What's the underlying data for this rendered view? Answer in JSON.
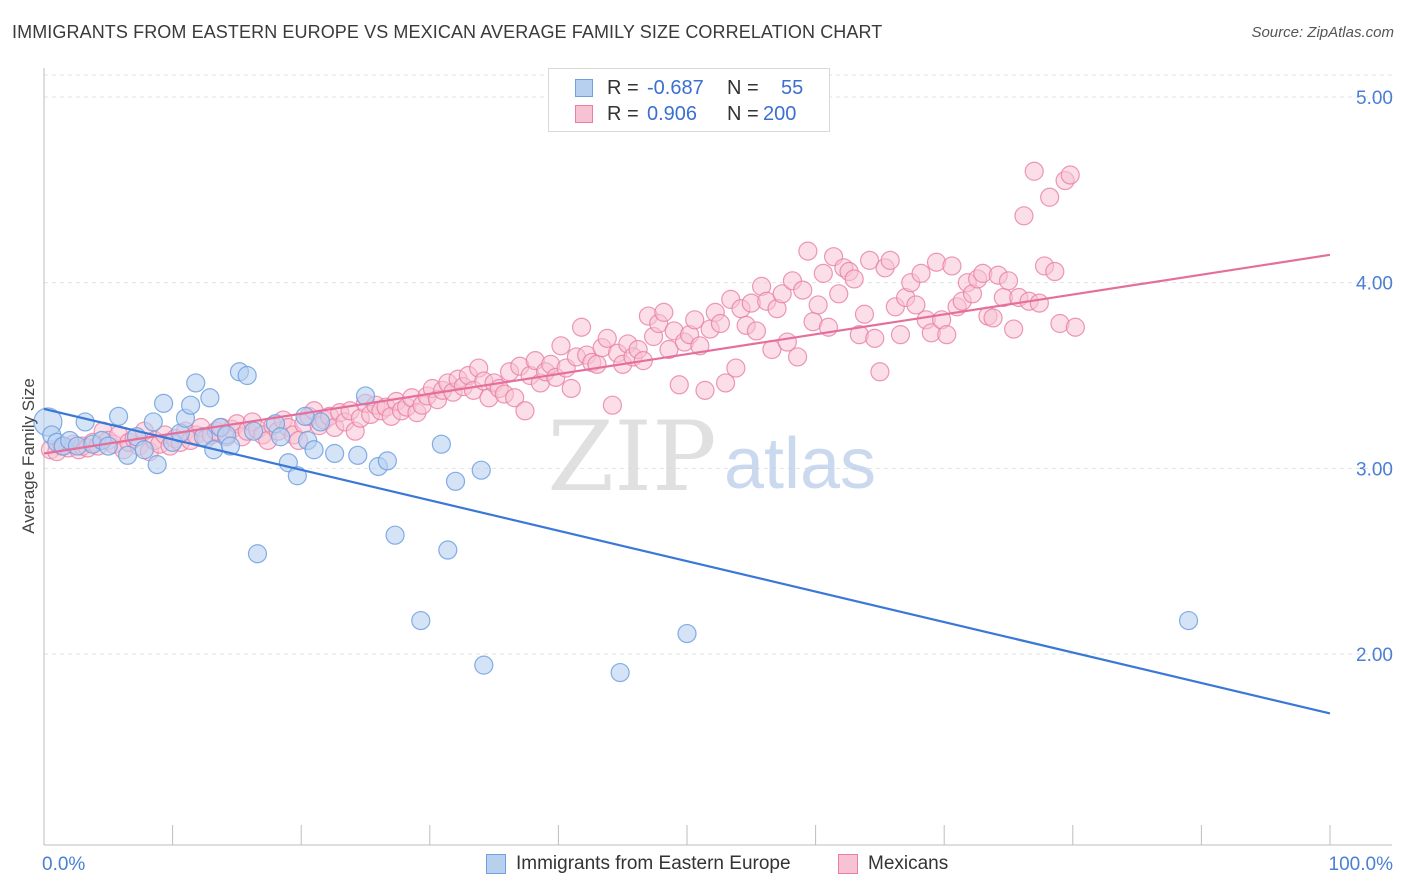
{
  "title": "IMMIGRANTS FROM EASTERN EUROPE VS MEXICAN AVERAGE FAMILY SIZE CORRELATION CHART",
  "source": "Source: ZipAtlas.com",
  "watermark": {
    "zip": "ZIP",
    "atlas": "atlas"
  },
  "legend_top": [
    {
      "r_label": "R =",
      "r_value": "-0.687",
      "n_label": "N =",
      "n_value": "55",
      "color": "#6fa0e0",
      "fill": "#b8d0f0"
    },
    {
      "r_label": "R =",
      "r_value": "0.906",
      "n_label": "N =",
      "n_value": "200",
      "color": "#e87ea4",
      "fill": "#f7c2d4"
    }
  ],
  "legend_bottom": [
    {
      "label": "Immigrants from Eastern Europe",
      "color": "#6fa0e0",
      "fill": "#b8d0f0"
    },
    {
      "label": "Mexicans",
      "color": "#e87ea4",
      "fill": "#f7c2d4"
    }
  ],
  "chart_data": {
    "type": "scatter",
    "title": "IMMIGRANTS FROM EASTERN EUROPE VS MEXICAN AVERAGE FAMILY SIZE CORRELATION CHART",
    "xlabel": "",
    "ylabel": "Average Family Size",
    "x_tick_labels": [
      "0.0%",
      "100.0%"
    ],
    "y_ticks": [
      2.0,
      3.0,
      4.0,
      5.0
    ],
    "y_tick_labels": [
      "2.00",
      "3.00",
      "4.00",
      "5.00"
    ],
    "xlim": [
      0,
      100
    ],
    "ylim": [
      1.0,
      5.1
    ],
    "grid": true,
    "series": [
      {
        "name": "Immigrants from Eastern Europe",
        "color": "#6fa0e0",
        "fill": "#b8d0f0",
        "trend": {
          "x": [
            0,
            100
          ],
          "y": [
            3.32,
            1.68
          ]
        },
        "points": [
          [
            0.3,
            3.25
          ],
          [
            0.6,
            3.18
          ],
          [
            1.0,
            3.14
          ],
          [
            1.5,
            3.12
          ],
          [
            2.0,
            3.15
          ],
          [
            2.6,
            3.12
          ],
          [
            3.2,
            3.25
          ],
          [
            3.8,
            3.13
          ],
          [
            4.5,
            3.15
          ],
          [
            5.0,
            3.12
          ],
          [
            5.8,
            3.28
          ],
          [
            6.5,
            3.07
          ],
          [
            7.2,
            3.17
          ],
          [
            7.8,
            3.1
          ],
          [
            8.5,
            3.25
          ],
          [
            8.8,
            3.02
          ],
          [
            9.3,
            3.35
          ],
          [
            10.0,
            3.14
          ],
          [
            10.6,
            3.19
          ],
          [
            11.0,
            3.27
          ],
          [
            11.4,
            3.34
          ],
          [
            11.8,
            3.46
          ],
          [
            12.4,
            3.17
          ],
          [
            12.9,
            3.38
          ],
          [
            13.2,
            3.1
          ],
          [
            13.7,
            3.22
          ],
          [
            14.2,
            3.18
          ],
          [
            15.2,
            3.52
          ],
          [
            15.8,
            3.5
          ],
          [
            16.3,
            3.2
          ],
          [
            16.6,
            2.54
          ],
          [
            18.0,
            3.24
          ],
          [
            18.4,
            3.17
          ],
          [
            19.0,
            3.03
          ],
          [
            19.7,
            2.96
          ],
          [
            20.5,
            3.15
          ],
          [
            21.0,
            3.1
          ],
          [
            21.5,
            3.25
          ],
          [
            22.6,
            3.08
          ],
          [
            24.4,
            3.07
          ],
          [
            25.0,
            3.39
          ],
          [
            26.0,
            3.01
          ],
          [
            26.7,
            3.04
          ],
          [
            27.3,
            2.64
          ],
          [
            29.3,
            2.18
          ],
          [
            30.9,
            3.13
          ],
          [
            31.4,
            2.56
          ],
          [
            32.0,
            2.93
          ],
          [
            34.0,
            2.99
          ],
          [
            34.2,
            1.94
          ],
          [
            44.8,
            1.9
          ],
          [
            50.0,
            2.11
          ],
          [
            89.0,
            2.18
          ],
          [
            20.3,
            3.28
          ],
          [
            14.5,
            3.12
          ]
        ]
      },
      {
        "name": "Mexicans",
        "color": "#e87ea4",
        "fill": "#f7c2d4",
        "trend": {
          "x": [
            0,
            100
          ],
          "y": [
            3.08,
            4.15
          ]
        },
        "points": [
          [
            0.5,
            3.1
          ],
          [
            1.0,
            3.09
          ],
          [
            1.4,
            3.12
          ],
          [
            1.9,
            3.11
          ],
          [
            2.3,
            3.13
          ],
          [
            2.7,
            3.1
          ],
          [
            3.0,
            3.12
          ],
          [
            3.4,
            3.11
          ],
          [
            3.8,
            3.14
          ],
          [
            4.2,
            3.12
          ],
          [
            4.6,
            3.2
          ],
          [
            5.0,
            3.15
          ],
          [
            5.4,
            3.13
          ],
          [
            5.8,
            3.18
          ],
          [
            6.2,
            3.1
          ],
          [
            6.6,
            3.14
          ],
          [
            7.0,
            3.16
          ],
          [
            7.4,
            3.12
          ],
          [
            7.8,
            3.2
          ],
          [
            8.2,
            3.09
          ],
          [
            8.6,
            3.15
          ],
          [
            9.0,
            3.13
          ],
          [
            9.4,
            3.18
          ],
          [
            9.8,
            3.12
          ],
          [
            10.2,
            3.16
          ],
          [
            10.6,
            3.14
          ],
          [
            11.0,
            3.2
          ],
          [
            11.4,
            3.15
          ],
          [
            11.8,
            3.18
          ],
          [
            12.2,
            3.22
          ],
          [
            12.6,
            3.16
          ],
          [
            13.0,
            3.18
          ],
          [
            13.4,
            3.2
          ],
          [
            13.8,
            3.22
          ],
          [
            14.2,
            3.17
          ],
          [
            14.6,
            3.21
          ],
          [
            15.0,
            3.24
          ],
          [
            15.4,
            3.17
          ],
          [
            15.8,
            3.2
          ],
          [
            16.2,
            3.25
          ],
          [
            16.6,
            3.21
          ],
          [
            17.0,
            3.18
          ],
          [
            17.4,
            3.15
          ],
          [
            17.8,
            3.23
          ],
          [
            18.2,
            3.2
          ],
          [
            18.6,
            3.26
          ],
          [
            19.0,
            3.22
          ],
          [
            19.4,
            3.18
          ],
          [
            19.8,
            3.15
          ],
          [
            20.2,
            3.24
          ],
          [
            20.6,
            3.28
          ],
          [
            21.0,
            3.31
          ],
          [
            21.4,
            3.23
          ],
          [
            21.8,
            3.26
          ],
          [
            22.2,
            3.28
          ],
          [
            22.6,
            3.22
          ],
          [
            23.0,
            3.3
          ],
          [
            23.4,
            3.25
          ],
          [
            23.8,
            3.31
          ],
          [
            24.2,
            3.2
          ],
          [
            24.6,
            3.27
          ],
          [
            25.0,
            3.35
          ],
          [
            25.4,
            3.29
          ],
          [
            25.8,
            3.34
          ],
          [
            26.2,
            3.31
          ],
          [
            26.6,
            3.33
          ],
          [
            27.0,
            3.28
          ],
          [
            27.4,
            3.36
          ],
          [
            27.8,
            3.31
          ],
          [
            28.2,
            3.33
          ],
          [
            28.6,
            3.38
          ],
          [
            29.0,
            3.3
          ],
          [
            29.4,
            3.34
          ],
          [
            29.8,
            3.39
          ],
          [
            30.2,
            3.43
          ],
          [
            30.6,
            3.37
          ],
          [
            31.0,
            3.42
          ],
          [
            31.4,
            3.46
          ],
          [
            31.8,
            3.41
          ],
          [
            32.2,
            3.48
          ],
          [
            32.6,
            3.44
          ],
          [
            33.0,
            3.5
          ],
          [
            33.4,
            3.42
          ],
          [
            33.8,
            3.54
          ],
          [
            34.2,
            3.47
          ],
          [
            34.6,
            3.38
          ],
          [
            35.0,
            3.46
          ],
          [
            35.4,
            3.43
          ],
          [
            35.8,
            3.4
          ],
          [
            36.2,
            3.52
          ],
          [
            36.6,
            3.38
          ],
          [
            37.0,
            3.55
          ],
          [
            37.4,
            3.31
          ],
          [
            37.8,
            3.5
          ],
          [
            38.2,
            3.58
          ],
          [
            38.6,
            3.46
          ],
          [
            39.0,
            3.52
          ],
          [
            39.4,
            3.56
          ],
          [
            39.8,
            3.49
          ],
          [
            40.2,
            3.66
          ],
          [
            40.6,
            3.54
          ],
          [
            41.0,
            3.43
          ],
          [
            41.4,
            3.6
          ],
          [
            41.8,
            3.76
          ],
          [
            42.2,
            3.61
          ],
          [
            42.6,
            3.57
          ],
          [
            43.0,
            3.56
          ],
          [
            43.4,
            3.65
          ],
          [
            43.8,
            3.7
          ],
          [
            44.2,
            3.34
          ],
          [
            44.6,
            3.62
          ],
          [
            45.0,
            3.56
          ],
          [
            45.4,
            3.67
          ],
          [
            45.8,
            3.6
          ],
          [
            46.2,
            3.64
          ],
          [
            46.6,
            3.58
          ],
          [
            47.0,
            3.82
          ],
          [
            47.4,
            3.71
          ],
          [
            47.8,
            3.78
          ],
          [
            48.2,
            3.84
          ],
          [
            48.6,
            3.64
          ],
          [
            49.0,
            3.74
          ],
          [
            49.4,
            3.45
          ],
          [
            49.8,
            3.68
          ],
          [
            50.2,
            3.72
          ],
          [
            50.6,
            3.8
          ],
          [
            51.0,
            3.66
          ],
          [
            51.4,
            3.42
          ],
          [
            51.8,
            3.75
          ],
          [
            52.2,
            3.84
          ],
          [
            52.6,
            3.78
          ],
          [
            53.0,
            3.46
          ],
          [
            53.4,
            3.91
          ],
          [
            53.8,
            3.54
          ],
          [
            54.2,
            3.86
          ],
          [
            54.6,
            3.77
          ],
          [
            55.0,
            3.89
          ],
          [
            55.4,
            3.74
          ],
          [
            55.8,
            3.98
          ],
          [
            56.2,
            3.9
          ],
          [
            56.6,
            3.64
          ],
          [
            57.0,
            3.86
          ],
          [
            57.4,
            3.94
          ],
          [
            57.8,
            3.68
          ],
          [
            58.2,
            4.01
          ],
          [
            58.6,
            3.6
          ],
          [
            59.0,
            3.96
          ],
          [
            59.4,
            4.17
          ],
          [
            59.8,
            3.79
          ],
          [
            60.2,
            3.88
          ],
          [
            60.6,
            4.05
          ],
          [
            61.0,
            3.76
          ],
          [
            61.4,
            4.14
          ],
          [
            61.8,
            3.94
          ],
          [
            62.2,
            4.08
          ],
          [
            62.6,
            4.06
          ],
          [
            63.0,
            4.02
          ],
          [
            63.4,
            3.72
          ],
          [
            63.8,
            3.83
          ],
          [
            64.2,
            4.12
          ],
          [
            64.6,
            3.7
          ],
          [
            65.0,
            3.52
          ],
          [
            65.4,
            4.08
          ],
          [
            65.8,
            4.12
          ],
          [
            66.2,
            3.87
          ],
          [
            66.6,
            3.72
          ],
          [
            67.0,
            3.92
          ],
          [
            67.4,
            4.0
          ],
          [
            67.8,
            3.88
          ],
          [
            68.2,
            4.05
          ],
          [
            68.6,
            3.8
          ],
          [
            69.0,
            3.73
          ],
          [
            69.4,
            4.11
          ],
          [
            69.8,
            3.8
          ],
          [
            70.2,
            3.72
          ],
          [
            70.6,
            4.09
          ],
          [
            71.0,
            3.87
          ],
          [
            71.4,
            3.9
          ],
          [
            71.8,
            4.0
          ],
          [
            72.2,
            3.94
          ],
          [
            72.6,
            4.02
          ],
          [
            73.0,
            4.05
          ],
          [
            73.4,
            3.82
          ],
          [
            73.8,
            3.81
          ],
          [
            74.2,
            4.04
          ],
          [
            74.6,
            3.92
          ],
          [
            75.0,
            4.01
          ],
          [
            75.4,
            3.75
          ],
          [
            75.8,
            3.92
          ],
          [
            76.2,
            4.36
          ],
          [
            76.6,
            3.9
          ],
          [
            77.0,
            4.6
          ],
          [
            77.4,
            3.89
          ],
          [
            77.8,
            4.09
          ],
          [
            78.2,
            4.46
          ],
          [
            78.6,
            4.06
          ],
          [
            79.0,
            3.78
          ],
          [
            79.4,
            4.55
          ],
          [
            79.8,
            4.58
          ],
          [
            80.2,
            3.76
          ]
        ]
      }
    ]
  }
}
